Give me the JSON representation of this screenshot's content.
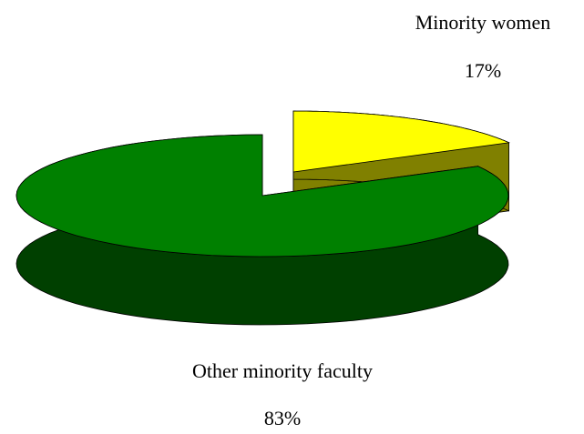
{
  "chart_data": {
    "type": "pie",
    "categories": [
      "Minority women",
      "Other minority faculty"
    ],
    "values": [
      17,
      83
    ],
    "value_labels": [
      "17%",
      "83%"
    ],
    "colors": [
      "#ffff00",
      "#008000"
    ],
    "side_colors": [
      "#808000",
      "#004000"
    ]
  }
}
